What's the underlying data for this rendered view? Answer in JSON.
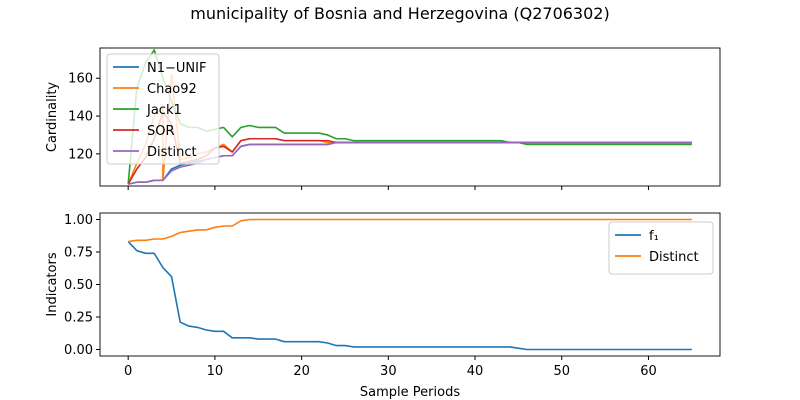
{
  "title": "municipality of Bosnia and Herzegovina (Q2706302)",
  "chart_data": [
    {
      "type": "line",
      "ylabel": "Cardinality",
      "xlabel": "",
      "xlim": [
        -3.25,
        68.25
      ],
      "ylim": [
        103,
        176
      ],
      "xticks": [
        0,
        10,
        20,
        30,
        40,
        50,
        60
      ],
      "xtick_labels_visible": false,
      "yticks": [
        120,
        140,
        160
      ],
      "ytick_labels": [
        "120",
        "140",
        "160"
      ],
      "legend_position": "upper-left",
      "series": [
        {
          "name": "N1−UNIF",
          "color": "#1f77b4",
          "x": [
            0,
            1,
            2,
            3,
            4,
            5,
            6,
            7,
            8,
            9,
            10,
            11,
            12,
            13,
            14,
            15,
            16,
            17,
            18,
            19,
            20,
            21,
            22,
            23,
            24,
            65
          ],
          "y": [
            104,
            105,
            105,
            106,
            106,
            112,
            114,
            115,
            116,
            117,
            118,
            119,
            119,
            124,
            125,
            125,
            125,
            125,
            125,
            125,
            125,
            125,
            125,
            125,
            126,
            126
          ]
        },
        {
          "name": "Chao92",
          "color": "#ff7f0e",
          "x": [
            0,
            1,
            2,
            3,
            4,
            4,
            5,
            6,
            7,
            8,
            9,
            10,
            11,
            12,
            13,
            14,
            15,
            16,
            17,
            18,
            19,
            20,
            21,
            22,
            23,
            24,
            65
          ],
          "y": [
            104,
            115,
            125,
            140,
            145,
            106,
            162,
            117,
            118,
            120,
            121,
            123,
            125,
            121,
            127,
            128,
            128,
            128,
            128,
            127,
            127,
            127,
            127,
            127,
            126,
            126,
            126
          ]
        },
        {
          "name": "Jack1",
          "color": "#2ca02c",
          "x": [
            0,
            1,
            2,
            3,
            4,
            5,
            6,
            7,
            8,
            9,
            10,
            11,
            12,
            13,
            14,
            15,
            16,
            17,
            18,
            19,
            20,
            21,
            22,
            23,
            24,
            25,
            26,
            27,
            43,
            44,
            45,
            46,
            65
          ],
          "y": [
            104,
            155,
            168,
            175,
            160,
            148,
            136,
            134,
            134,
            132,
            133,
            134,
            129,
            134,
            135,
            134,
            134,
            134,
            131,
            131,
            131,
            131,
            131,
            130,
            128,
            128,
            127,
            127,
            127,
            126,
            126,
            125,
            125
          ]
        },
        {
          "name": "SOR",
          "color": "#d62728",
          "x": [
            0,
            1,
            2,
            3,
            4,
            5,
            6,
            7,
            8,
            9,
            10,
            11,
            12,
            13,
            14,
            15,
            16,
            17,
            18,
            19,
            20,
            21,
            22,
            23,
            24,
            65
          ],
          "y": [
            104,
            112,
            118,
            128,
            142,
            136,
            115,
            116,
            117,
            119,
            123,
            124,
            121,
            127,
            128,
            128,
            128,
            128,
            127,
            127,
            127,
            127,
            127,
            127,
            126,
            126
          ]
        },
        {
          "name": "Distinct",
          "color": "#9467bd",
          "x": [
            0,
            1,
            2,
            3,
            4,
            5,
            6,
            7,
            8,
            9,
            10,
            11,
            12,
            13,
            14,
            15,
            16,
            17,
            18,
            19,
            20,
            21,
            22,
            23,
            24,
            65
          ],
          "y": [
            104,
            105,
            105,
            106,
            106,
            111,
            113,
            114,
            115,
            117,
            118,
            119,
            119,
            124,
            125,
            125,
            125,
            125,
            125,
            125,
            125,
            125,
            125,
            125,
            126,
            126
          ]
        }
      ]
    },
    {
      "type": "line",
      "ylabel": "Indicators",
      "xlabel": "Sample Periods",
      "xlim": [
        -3.25,
        68.25
      ],
      "ylim": [
        -0.05,
        1.05
      ],
      "xticks": [
        0,
        10,
        20,
        30,
        40,
        50,
        60
      ],
      "xtick_labels": [
        "0",
        "10",
        "20",
        "30",
        "40",
        "50",
        "60"
      ],
      "yticks": [
        0.0,
        0.25,
        0.5,
        0.75,
        1.0
      ],
      "ytick_labels": [
        "0.00",
        "0.25",
        "0.50",
        "0.75",
        "1.00"
      ],
      "legend_position": "upper-right",
      "series": [
        {
          "name": "f₁",
          "color": "#1f77b4",
          "x": [
            0,
            1,
            2,
            3,
            4,
            5,
            6,
            7,
            8,
            9,
            10,
            11,
            12,
            13,
            14,
            15,
            16,
            17,
            18,
            19,
            20,
            21,
            22,
            23,
            24,
            25,
            26,
            43,
            44,
            45,
            46,
            65
          ],
          "y": [
            0.83,
            0.76,
            0.74,
            0.74,
            0.63,
            0.56,
            0.21,
            0.18,
            0.17,
            0.15,
            0.14,
            0.14,
            0.09,
            0.09,
            0.09,
            0.08,
            0.08,
            0.08,
            0.06,
            0.06,
            0.06,
            0.06,
            0.06,
            0.05,
            0.03,
            0.03,
            0.02,
            0.02,
            0.02,
            0.01,
            0.0,
            0.0
          ]
        },
        {
          "name": "Distinct",
          "color": "#ff7f0e",
          "x": [
            0,
            1,
            2,
            3,
            4,
            5,
            6,
            7,
            8,
            9,
            10,
            11,
            12,
            13,
            14,
            15,
            16,
            17,
            18,
            19,
            20,
            21,
            22,
            23,
            24,
            65
          ],
          "y": [
            0.83,
            0.84,
            0.84,
            0.85,
            0.85,
            0.87,
            0.9,
            0.91,
            0.92,
            0.92,
            0.94,
            0.95,
            0.95,
            0.99,
            1.0,
            1.0,
            1.0,
            1.0,
            1.0,
            1.0,
            1.0,
            1.0,
            1.0,
            1.0,
            1.0,
            1.0
          ]
        }
      ]
    }
  ]
}
